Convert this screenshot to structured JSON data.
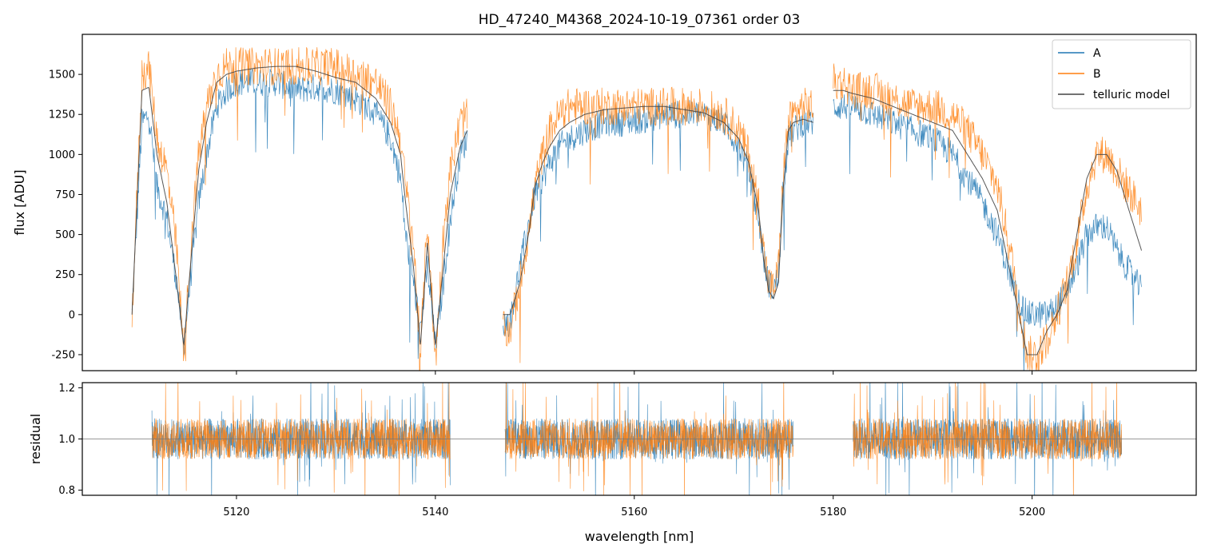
{
  "chart_data": [
    {
      "type": "line",
      "title": "HD_47240_M4368_2024-10-19_07361  order 03",
      "ylabel": "flux [ADU]",
      "xlim": [
        5104.5,
        5216.5
      ],
      "ylim": [
        -350,
        1750
      ],
      "x_ticks": [
        5120,
        5140,
        5160,
        5180,
        5200
      ],
      "y_ticks": [
        -250,
        0,
        250,
        500,
        750,
        1000,
        1250,
        1500
      ],
      "legend": {
        "placement": "upper-right",
        "entries": [
          "A",
          "B",
          "telluric model"
        ]
      },
      "segments": [
        [
          5109.5,
          5143.2
        ],
        [
          5146.8,
          5178.0
        ],
        [
          5180.0,
          5211.0
        ]
      ],
      "series": [
        {
          "name": "A",
          "color": "#1f77b4",
          "x": [
            5109.5,
            5110.5,
            5111.2,
            5112.0,
            5113.0,
            5114.0,
            5114.7,
            5115.5,
            5116.2,
            5117.0,
            5118.0,
            5119.0,
            5120.0,
            5122.0,
            5124.0,
            5126.0,
            5128.0,
            5130.0,
            5132.0,
            5134.0,
            5135.5,
            5136.5,
            5137.0,
            5137.8,
            5138.5,
            5139.2,
            5140.0,
            5140.8,
            5141.5,
            5142.5,
            5143.2,
            5146.8,
            5147.5,
            5148.5,
            5149.5,
            5150.0,
            5150.8,
            5151.5,
            5152.5,
            5153.5,
            5155.0,
            5157.0,
            5159.0,
            5161.0,
            5163.0,
            5165.0,
            5167.0,
            5169.0,
            5170.5,
            5171.5,
            5172.5,
            5173.0,
            5173.5,
            5174.0,
            5174.5,
            5175.0,
            5175.5,
            5176.0,
            5177.0,
            5178.0,
            5180.0,
            5181.0,
            5182.0,
            5184.0,
            5186.0,
            5188.0,
            5190.0,
            5192.0,
            5193.5,
            5195.0,
            5196.5,
            5197.5,
            5198.5,
            5199.5,
            5200.5,
            5201.5,
            5202.5,
            5203.5,
            5204.5,
            5205.5,
            5206.5,
            5207.5,
            5208.5,
            5209.5,
            5210.5,
            5211.0
          ],
          "y": [
            0,
            1200,
            1250,
            800,
            600,
            200,
            -200,
            300,
            700,
            1000,
            1300,
            1400,
            1450,
            1450,
            1450,
            1400,
            1420,
            1400,
            1350,
            1250,
            1100,
            850,
            500,
            200,
            -100,
            300,
            -200,
            200,
            600,
            1000,
            1100,
            -50,
            -50,
            300,
            600,
            750,
            850,
            950,
            1050,
            1100,
            1150,
            1200,
            1200,
            1220,
            1250,
            1250,
            1250,
            1200,
            1050,
            900,
            600,
            350,
            200,
            150,
            250,
            800,
            1100,
            1150,
            1200,
            1200,
            1300,
            1300,
            1300,
            1250,
            1200,
            1150,
            1100,
            1000,
            850,
            700,
            500,
            300,
            100,
            0,
            0,
            0,
            50,
            150,
            300,
            500,
            550,
            550,
            400,
            300,
            200,
            150
          ]
        },
        {
          "name": "B",
          "color": "#ff7f0e",
          "x": [
            5109.5,
            5110.5,
            5111.2,
            5112.0,
            5113.0,
            5114.0,
            5114.7,
            5115.5,
            5116.2,
            5117.0,
            5118.0,
            5119.0,
            5120.0,
            5122.0,
            5124.0,
            5126.0,
            5128.0,
            5130.0,
            5132.0,
            5134.0,
            5135.5,
            5136.5,
            5137.0,
            5137.8,
            5138.5,
            5139.2,
            5140.0,
            5140.8,
            5141.5,
            5142.5,
            5143.2,
            5146.8,
            5147.5,
            5148.5,
            5149.5,
            5150.0,
            5150.8,
            5151.5,
            5152.5,
            5153.5,
            5155.0,
            5157.0,
            5159.0,
            5161.0,
            5163.0,
            5165.0,
            5167.0,
            5169.0,
            5170.5,
            5171.5,
            5172.5,
            5173.0,
            5173.5,
            5174.0,
            5174.5,
            5175.0,
            5175.5,
            5176.0,
            5177.0,
            5178.0,
            5180.0,
            5181.0,
            5182.0,
            5184.0,
            5186.0,
            5188.0,
            5190.0,
            5192.0,
            5193.5,
            5195.0,
            5196.5,
            5197.5,
            5198.5,
            5199.5,
            5200.5,
            5201.5,
            5202.5,
            5203.5,
            5204.5,
            5205.5,
            5206.5,
            5207.5,
            5208.5,
            5209.5,
            5210.5,
            5211.0
          ],
          "y": [
            0,
            1500,
            1550,
            1100,
            900,
            400,
            -250,
            500,
            1000,
            1300,
            1500,
            1550,
            1550,
            1550,
            1550,
            1550,
            1550,
            1550,
            1500,
            1450,
            1300,
            1100,
            800,
            450,
            -250,
            600,
            -300,
            500,
            900,
            1200,
            1250,
            -100,
            -100,
            200,
            550,
            800,
            1000,
            1150,
            1250,
            1300,
            1300,
            1300,
            1300,
            1300,
            1300,
            1300,
            1300,
            1250,
            1150,
            1000,
            700,
            400,
            200,
            150,
            300,
            900,
            1200,
            1250,
            1300,
            1300,
            1450,
            1450,
            1400,
            1400,
            1350,
            1300,
            1300,
            1250,
            1150,
            1000,
            800,
            500,
            150,
            -250,
            -250,
            -150,
            0,
            200,
            450,
            800,
            1000,
            1000,
            900,
            800,
            700,
            650
          ]
        },
        {
          "name": "telluric model",
          "color": "#444444",
          "x": [
            5109.5,
            5110.5,
            5111.2,
            5112.0,
            5113.0,
            5114.0,
            5114.7,
            5115.5,
            5116.2,
            5117.0,
            5118.0,
            5119.0,
            5120.0,
            5122.0,
            5124.0,
            5126.0,
            5128.0,
            5130.0,
            5132.0,
            5134.0,
            5135.5,
            5136.5,
            5137.0,
            5137.8,
            5138.5,
            5139.2,
            5140.0,
            5140.8,
            5141.5,
            5142.5,
            5143.2,
            5146.8,
            5147.5,
            5148.5,
            5149.5,
            5150.0,
            5150.8,
            5151.5,
            5152.5,
            5153.5,
            5155.0,
            5157.0,
            5159.0,
            5161.0,
            5163.0,
            5165.0,
            5167.0,
            5169.0,
            5170.5,
            5171.5,
            5172.5,
            5173.0,
            5173.5,
            5174.0,
            5174.5,
            5175.0,
            5175.5,
            5176.0,
            5177.0,
            5178.0,
            5180.0,
            5181.0,
            5182.0,
            5184.0,
            5186.0,
            5188.0,
            5190.0,
            5192.0,
            5193.5,
            5195.0,
            5196.5,
            5197.5,
            5198.5,
            5199.5,
            5200.5,
            5201.5,
            5202.5,
            5203.5,
            5204.5,
            5205.5,
            5206.5,
            5207.5,
            5208.5,
            5209.5,
            5210.5,
            5211.0
          ],
          "y": [
            0,
            1400,
            1420,
            1000,
            700,
            200,
            -200,
            400,
            900,
            1200,
            1450,
            1500,
            1520,
            1540,
            1550,
            1550,
            1520,
            1480,
            1450,
            1350,
            1200,
            1000,
            700,
            300,
            -200,
            450,
            -200,
            300,
            750,
            1050,
            1150,
            0,
            0,
            200,
            550,
            800,
            950,
            1050,
            1150,
            1200,
            1250,
            1280,
            1290,
            1300,
            1300,
            1280,
            1260,
            1200,
            1100,
            950,
            650,
            350,
            150,
            100,
            200,
            800,
            1150,
            1200,
            1220,
            1200,
            1400,
            1400,
            1380,
            1350,
            1300,
            1250,
            1200,
            1150,
            1000,
            850,
            650,
            350,
            50,
            -250,
            -250,
            -100,
            0,
            150,
            500,
            850,
            1000,
            1000,
            900,
            700,
            500,
            400
          ]
        }
      ]
    },
    {
      "type": "line",
      "xlabel": "wavelength [nm]",
      "ylabel": "residual",
      "xlim": [
        5104.5,
        5216.5
      ],
      "ylim": [
        0.78,
        1.22
      ],
      "x_ticks": [
        5120,
        5140,
        5160,
        5180,
        5200
      ],
      "y_ticks": [
        0.8,
        1.0,
        1.2
      ],
      "reference_line": 1.0,
      "segments": [
        [
          5111.5,
          5141.5
        ],
        [
          5147.0,
          5176.0
        ],
        [
          5182.0,
          5209.0
        ]
      ],
      "series": [
        {
          "name": "A",
          "color": "#1f77b4",
          "mean": 1.0,
          "spread": 0.08
        },
        {
          "name": "B",
          "color": "#ff7f0e",
          "mean": 1.0,
          "spread": 0.08
        }
      ]
    }
  ]
}
